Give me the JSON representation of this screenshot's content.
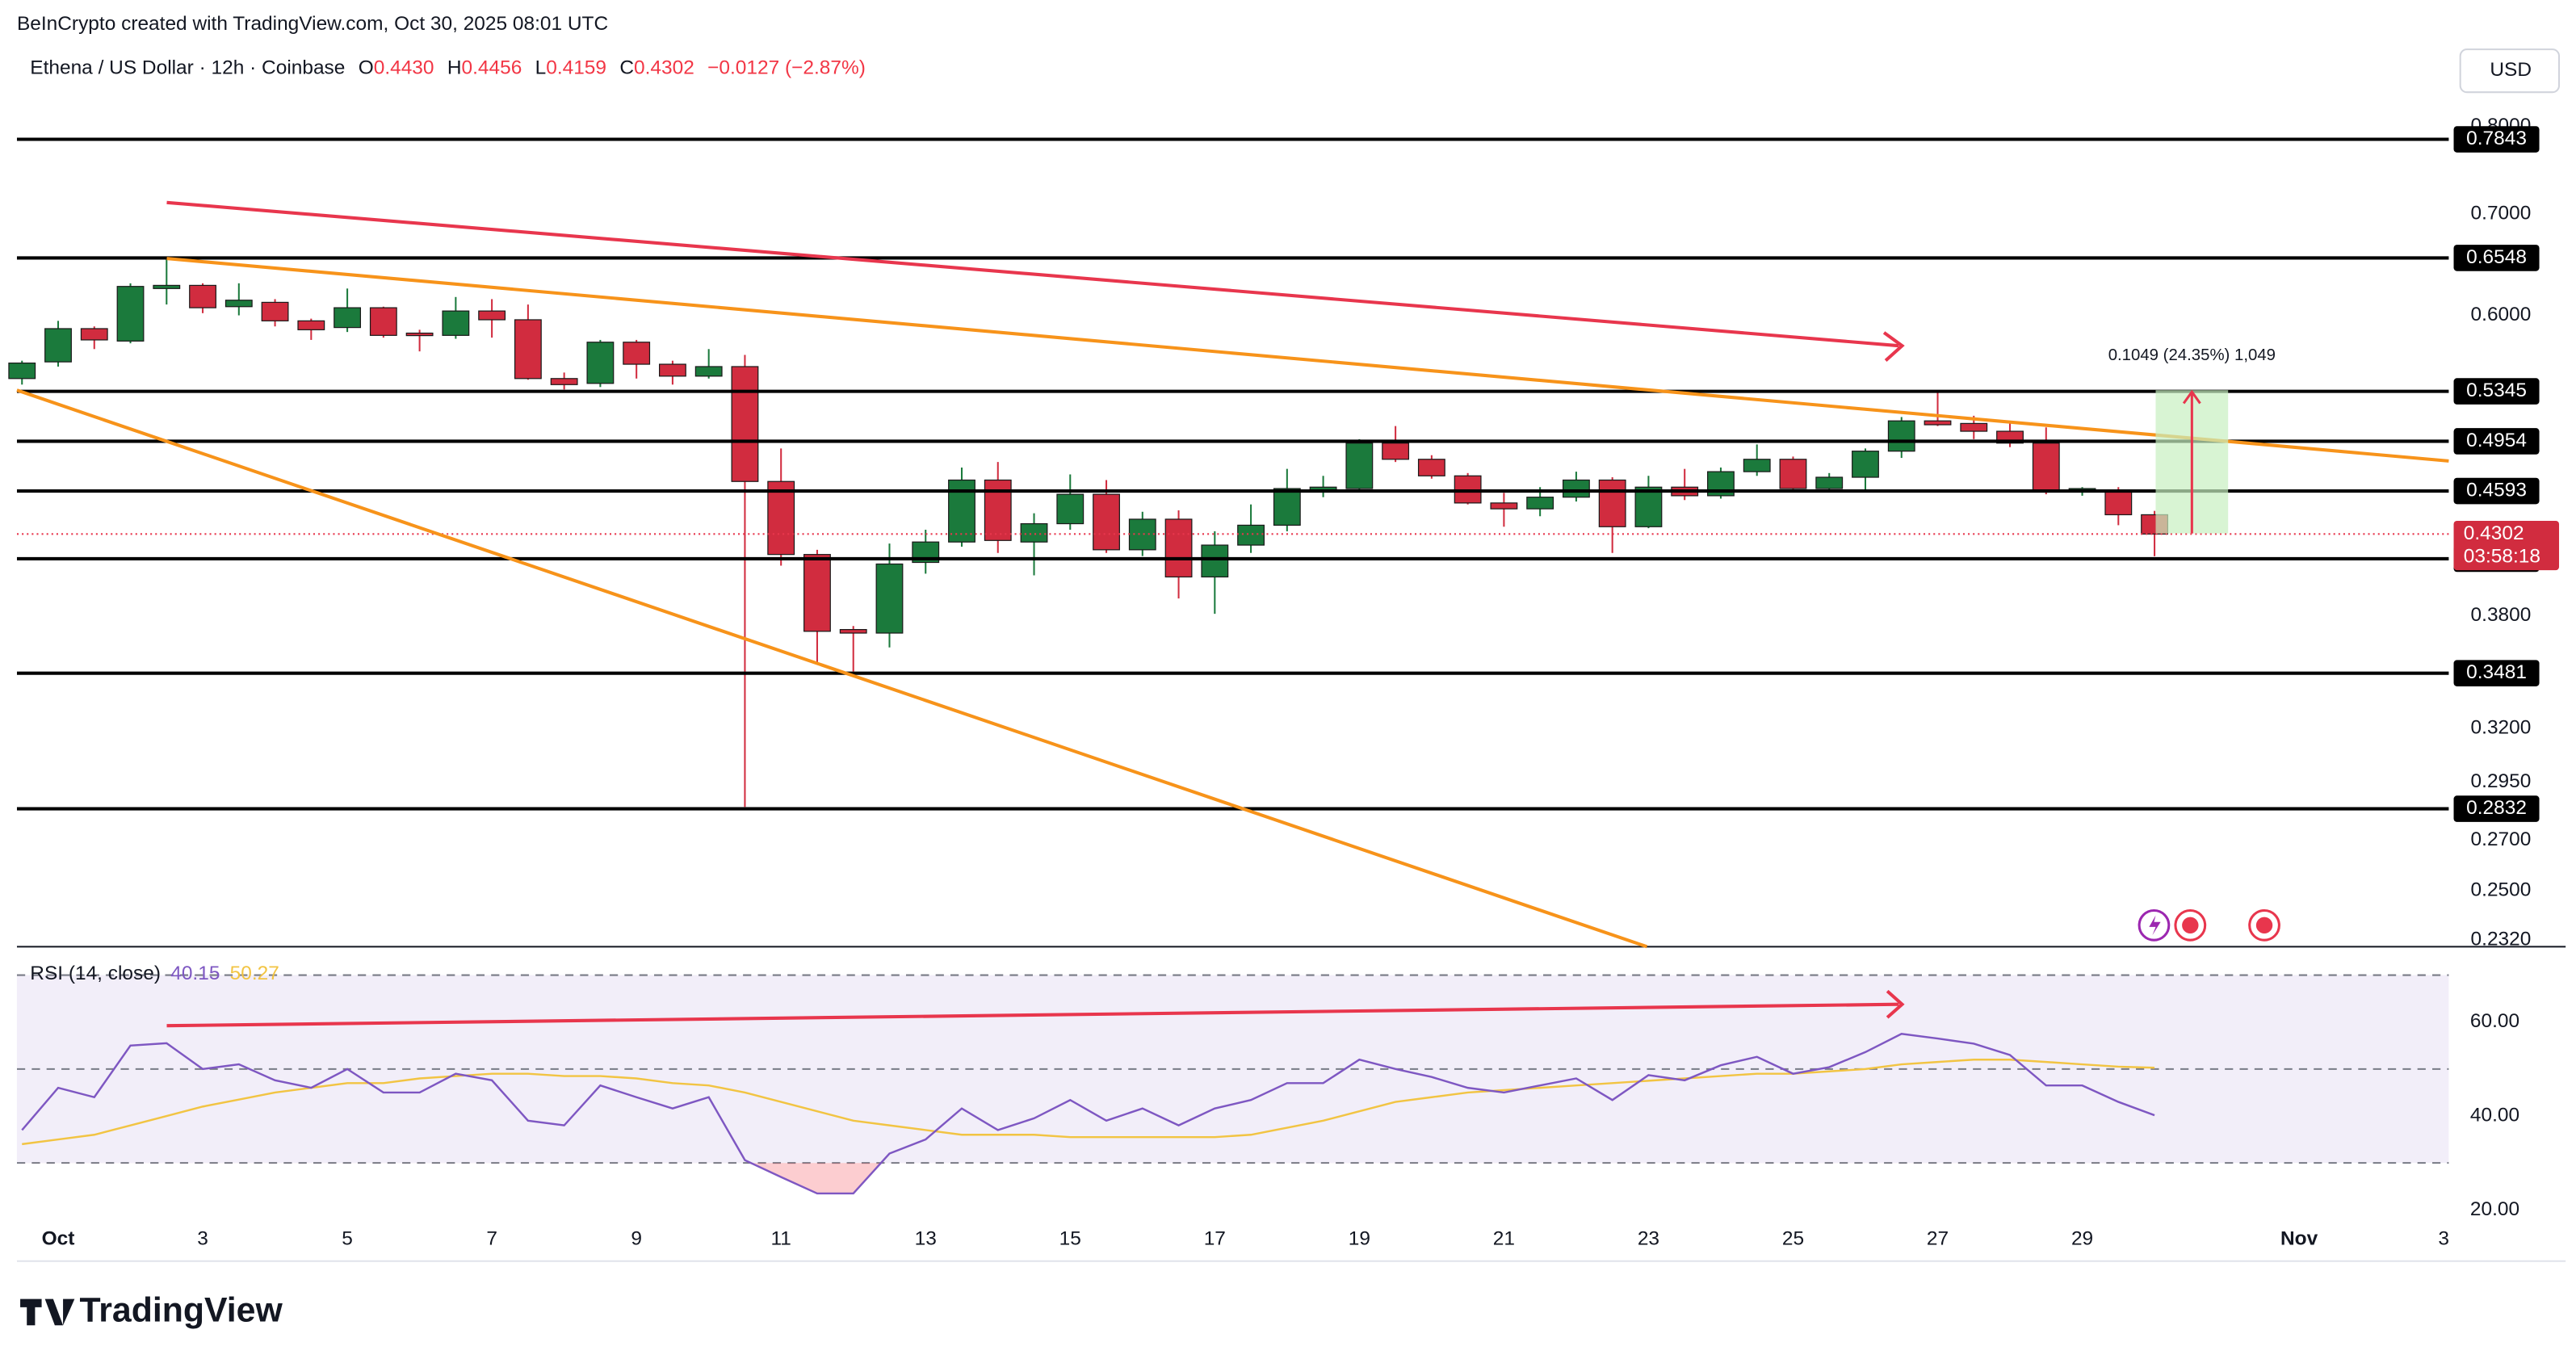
{
  "header": {
    "credit": "BeInCrypto created with TradingView.com, Oct 30, 2025 08:01 UTC",
    "ohlc": [
      {
        "key": "O",
        "value": "0.4430"
      },
      {
        "key": "H",
        "value": "0.4456"
      },
      {
        "key": "L",
        "value": "0.4159"
      },
      {
        "key": "C",
        "value": "0.4302"
      }
    ],
    "change": "−0.0127 (−2.87%)",
    "currency": "USD",
    "measure": "0.1049 (24.35%) 1,049",
    "brand": "TradingView"
  },
  "chart_data": [
    {
      "type": "candlestick",
      "title": "Ethena / US Dollar · 12h · Coinbase",
      "log_scale": true,
      "up_color": "#1b7a3c",
      "down_color": "#d12c3f",
      "x": [
        -0.5,
        0,
        0.5,
        1,
        1.5,
        2,
        2.5,
        3,
        3.5,
        4,
        4.5,
        5,
        5.5,
        6,
        6.5,
        7,
        7.5,
        8,
        8.5,
        9,
        9.5,
        10,
        10.5,
        11,
        11.5,
        12,
        12.5,
        13,
        13.5,
        14,
        14.5,
        15,
        15.5,
        16,
        16.5,
        17,
        17.5,
        18,
        18.5,
        19,
        19.5,
        20,
        20.5,
        21,
        21.5,
        22,
        22.5,
        23,
        23.5,
        24,
        24.5,
        25,
        25.5,
        26,
        26.5,
        27,
        27.5,
        28,
        28.5,
        29
      ],
      "open": [
        0.545,
        0.559,
        0.588,
        0.577,
        0.625,
        0.628,
        0.608,
        0.612,
        0.595,
        0.589,
        0.607,
        0.584,
        0.582,
        0.604,
        0.596,
        0.545,
        0.541,
        0.576,
        0.557,
        0.547,
        0.555,
        0.466,
        0.417,
        0.372,
        0.37,
        0.412,
        0.425,
        0.467,
        0.425,
        0.437,
        0.457,
        0.42,
        0.44,
        0.403,
        0.423,
        0.436,
        0.459,
        0.461,
        0.494,
        0.482,
        0.47,
        0.451,
        0.447,
        0.455,
        0.467,
        0.435,
        0.462,
        0.456,
        0.473,
        0.482,
        0.461,
        0.469,
        0.488,
        0.511,
        0.509,
        0.503,
        0.494,
        0.459,
        0.46,
        0.443
      ],
      "high": [
        0.56,
        0.595,
        0.59,
        0.63,
        0.654,
        0.63,
        0.63,
        0.615,
        0.597,
        0.625,
        0.608,
        0.587,
        0.617,
        0.615,
        0.61,
        0.55,
        0.578,
        0.578,
        0.56,
        0.57,
        0.565,
        0.49,
        0.42,
        0.374,
        0.424,
        0.433,
        0.476,
        0.48,
        0.444,
        0.471,
        0.467,
        0.445,
        0.446,
        0.432,
        0.45,
        0.475,
        0.47,
        0.497,
        0.507,
        0.485,
        0.472,
        0.458,
        0.462,
        0.473,
        0.469,
        0.47,
        0.475,
        0.476,
        0.493,
        0.484,
        0.472,
        0.49,
        0.514,
        0.535,
        0.515,
        0.51,
        0.506,
        0.462,
        0.462,
        0.4456
      ],
      "low": [
        0.54,
        0.555,
        0.57,
        0.575,
        0.61,
        0.602,
        0.6,
        0.59,
        0.578,
        0.585,
        0.58,
        0.568,
        0.579,
        0.58,
        0.544,
        0.536,
        0.538,
        0.545,
        0.54,
        0.545,
        0.284,
        0.41,
        0.353,
        0.349,
        0.362,
        0.405,
        0.422,
        0.418,
        0.404,
        0.433,
        0.418,
        0.416,
        0.39,
        0.381,
        0.418,
        0.432,
        0.455,
        0.459,
        0.48,
        0.468,
        0.45,
        0.435,
        0.442,
        0.452,
        0.418,
        0.434,
        0.453,
        0.454,
        0.47,
        0.459,
        0.459,
        0.46,
        0.483,
        0.507,
        0.497,
        0.491,
        0.457,
        0.456,
        0.436,
        0.4159
      ],
      "close": [
        0.558,
        0.588,
        0.578,
        0.627,
        0.628,
        0.607,
        0.614,
        0.595,
        0.587,
        0.607,
        0.582,
        0.582,
        0.604,
        0.596,
        0.545,
        0.54,
        0.576,
        0.557,
        0.547,
        0.555,
        0.466,
        0.417,
        0.371,
        0.37,
        0.411,
        0.425,
        0.467,
        0.426,
        0.437,
        0.457,
        0.42,
        0.44,
        0.403,
        0.423,
        0.436,
        0.461,
        0.462,
        0.494,
        0.482,
        0.47,
        0.451,
        0.447,
        0.455,
        0.467,
        0.435,
        0.462,
        0.456,
        0.473,
        0.482,
        0.461,
        0.469,
        0.488,
        0.511,
        0.508,
        0.503,
        0.494,
        0.459,
        0.461,
        0.443,
        0.4302
      ],
      "ylim": [
        0.2296,
        0.8447
      ],
      "yticks": [
        {
          "value": 0.232,
          "label": "0.2320"
        },
        {
          "value": 0.25,
          "label": "0.2500"
        },
        {
          "value": 0.27,
          "label": "0.2700"
        },
        {
          "value": 0.295,
          "label": "0.2950"
        },
        {
          "value": 0.32,
          "label": "0.3200"
        },
        {
          "value": 0.38,
          "label": "0.3800"
        },
        {
          "value": 0.6,
          "label": "0.6000"
        },
        {
          "value": 0.7,
          "label": "0.7000"
        },
        {
          "value": 0.8,
          "label": "0.8000"
        }
      ],
      "xlim": [
        -0.57,
        33.07
      ],
      "xticks": [
        {
          "value": 0,
          "label": "Oct"
        },
        {
          "value": 2,
          "label": "3"
        },
        {
          "value": 4,
          "label": "5"
        },
        {
          "value": 6,
          "label": "7"
        },
        {
          "value": 8,
          "label": "9"
        },
        {
          "value": 10,
          "label": "11"
        },
        {
          "value": 12,
          "label": "13"
        },
        {
          "value": 14,
          "label": "15"
        },
        {
          "value": 16,
          "label": "17"
        },
        {
          "value": 18,
          "label": "19"
        },
        {
          "value": 20,
          "label": "21"
        },
        {
          "value": 22,
          "label": "23"
        },
        {
          "value": 24,
          "label": "25"
        },
        {
          "value": 26,
          "label": "27"
        },
        {
          "value": 28,
          "label": "29"
        },
        {
          "value": 31,
          "label": "Nov"
        },
        {
          "value": 33,
          "label": "3"
        }
      ],
      "levels": [
        0.7843,
        0.6548,
        0.5345,
        0.4954,
        0.4593,
        0.4143,
        0.3481,
        0.2832
      ],
      "current_price": 0.4302,
      "countdown": "03:58:18"
    },
    {
      "type": "line",
      "title": "RSI (14, close)",
      "series": [
        {
          "color": "#7e57c2",
          "values": [
            37,
            46,
            44,
            55,
            55.5,
            50,
            51,
            47.6,
            46,
            50,
            45,
            45,
            49,
            47.6,
            39,
            38,
            46.5,
            44,
            41.6,
            44,
            30.6,
            27,
            23.5,
            23.5,
            32,
            35,
            41.6,
            37,
            39.5,
            43.4,
            39,
            41.6,
            38,
            41.6,
            43.4,
            47,
            47,
            52,
            50,
            48.3,
            46,
            45,
            46.5,
            48,
            43.4,
            48.7,
            47.6,
            50.8,
            52.6,
            49,
            50.4,
            53.6,
            57.5,
            56.5,
            55.4,
            53,
            46.5,
            46.5,
            43,
            40.15
          ]
        },
        {
          "color": "#f2c443",
          "values": [
            34,
            35,
            36,
            38,
            40,
            42,
            43.5,
            45,
            46,
            47,
            47,
            48,
            48.5,
            49,
            49,
            48.5,
            48.5,
            48,
            47,
            46.5,
            45,
            43,
            41,
            39,
            38,
            37,
            36,
            36,
            36,
            35.5,
            35.5,
            35.5,
            35.5,
            35.5,
            36,
            37.5,
            39,
            41,
            43,
            44,
            45,
            45.5,
            46,
            46.5,
            47,
            47.5,
            48,
            48.5,
            49,
            49,
            49.5,
            50,
            51,
            51.5,
            52,
            52,
            51.5,
            51,
            50.5,
            50.27
          ]
        }
      ],
      "ylim": [
        17.5,
        75
      ],
      "yticks": [
        {
          "value": 20,
          "label": "20.00"
        },
        {
          "value": 40,
          "label": "40.00"
        },
        {
          "value": 60,
          "label": "60.00"
        }
      ],
      "bands": [
        70,
        50,
        30
      ]
    }
  ]
}
